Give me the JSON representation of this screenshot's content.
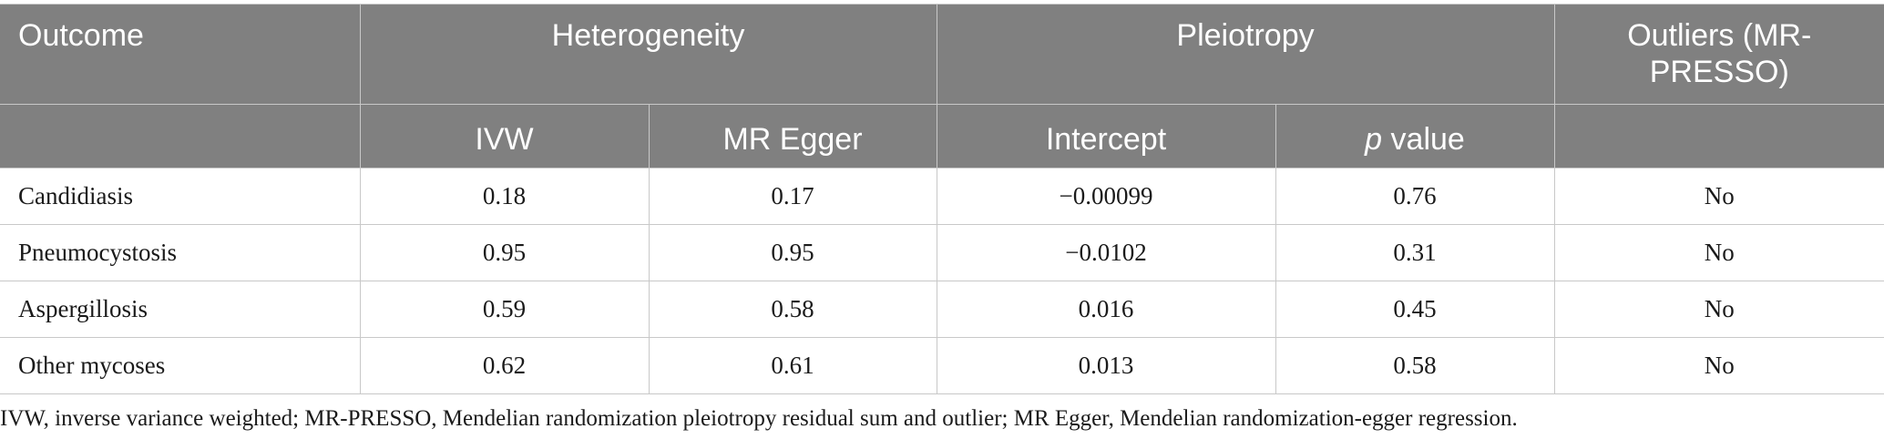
{
  "table": {
    "header_row1": {
      "outcome": "Outcome",
      "heterogeneity": "Heterogeneity",
      "pleiotropy": "Pleiotropy",
      "outliers": "Outliers (MR-PRESSO)"
    },
    "header_row2": {
      "ivw": "IVW",
      "mr_egger": "MR Egger",
      "intercept": "Intercept",
      "p_italic": "p",
      "p_rest": " value"
    },
    "rows": [
      {
        "outcome": "Candidiasis",
        "ivw": "0.18",
        "mr_egger": "0.17",
        "intercept": "−0.00099",
        "p_value": "0.76",
        "outliers": "No"
      },
      {
        "outcome": "Pneumocystosis",
        "ivw": "0.95",
        "mr_egger": "0.95",
        "intercept": "−0.0102",
        "p_value": "0.31",
        "outliers": "No"
      },
      {
        "outcome": "Aspergillosis",
        "ivw": "0.59",
        "mr_egger": "0.58",
        "intercept": "0.016",
        "p_value": "0.45",
        "outliers": "No"
      },
      {
        "outcome": "Other mycoses",
        "ivw": "0.62",
        "mr_egger": "0.61",
        "intercept": "0.013",
        "p_value": "0.58",
        "outliers": "No"
      }
    ]
  },
  "footnote": "IVW, inverse variance weighted; MR-PRESSO, Mendelian randomization pleiotropy residual sum and outlier; MR Egger, Mendelian randomization-egger regression.",
  "colors": {
    "header_bg": "#808080",
    "header_text": "#ffffff",
    "border": "#c8c8c8"
  }
}
